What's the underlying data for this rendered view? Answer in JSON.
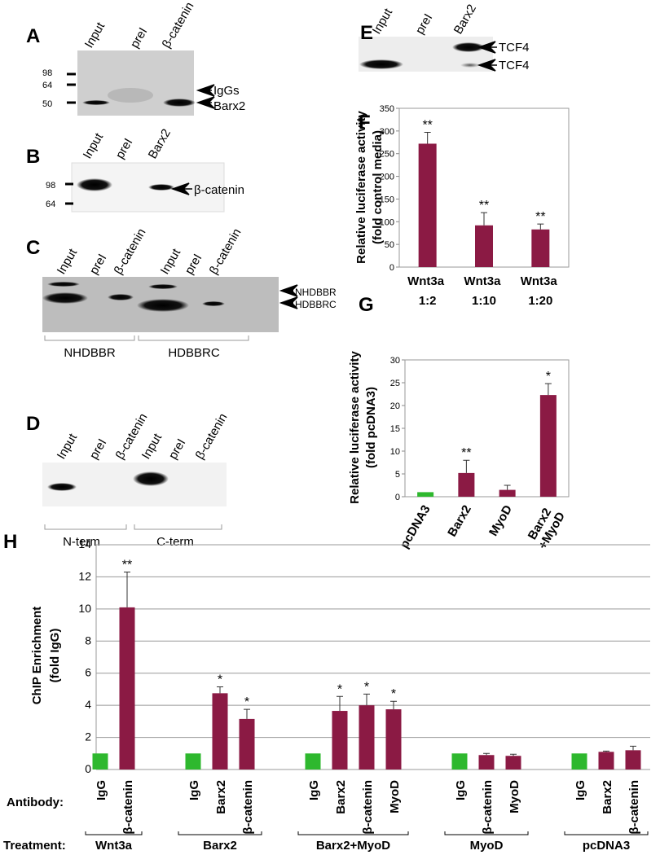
{
  "panel_letters": [
    "A",
    "B",
    "C",
    "D",
    "E",
    "F",
    "G",
    "H"
  ],
  "blots": {
    "A": {
      "lanes": [
        "Input",
        "preI",
        "β-catenin"
      ],
      "markers": [
        98,
        64,
        50
      ],
      "bands": [
        "IgGs",
        "Barx2"
      ]
    },
    "B": {
      "lanes": [
        "Input",
        "preI",
        "Barx2"
      ],
      "markers": [
        98,
        64
      ],
      "bands": [
        "β-catenin"
      ]
    },
    "C": {
      "lanes": [
        "Input",
        "preI",
        "β-catenin",
        "Input",
        "preI",
        "β-catenin"
      ],
      "bands": [
        "NHDBBR",
        "HDBBRC"
      ],
      "groups": [
        "NHDBBR",
        "HDBBRC"
      ]
    },
    "D": {
      "lanes": [
        "Input",
        "preI",
        "β-catenin",
        "Input",
        "preI",
        "β-catenin"
      ],
      "groups": [
        "N-term",
        "C-term"
      ]
    },
    "E": {
      "lanes": [
        "Input",
        "preI",
        "Barx2"
      ],
      "bands": [
        "TCF4",
        "TCF4"
      ]
    }
  },
  "chart_data": [
    {
      "type": "bar",
      "ylabel": [
        "Relative luciferase activity",
        "(fold control media)"
      ],
      "categories": [
        "Wnt3a 1:2",
        "Wnt3a 1:10",
        "Wnt3a 1:20"
      ],
      "values": [
        272,
        92,
        83
      ],
      "errors": [
        25,
        28,
        12
      ],
      "annotations": [
        "**",
        "**",
        "**"
      ],
      "color": "#8b1a44",
      "ylim": [
        0,
        350
      ],
      "yticks": [
        0,
        50,
        100,
        150,
        200,
        250,
        300,
        350
      ],
      "grid": false
    },
    {
      "type": "bar",
      "ylabel": [
        "Relative luciferase activity",
        "(fold pcDNA3)"
      ],
      "categories": [
        "pcDNA3",
        "Barx2",
        "MyoD",
        "Barx2 +MyoD"
      ],
      "values": [
        1,
        5.2,
        1.5,
        22.3
      ],
      "errors": [
        null,
        2.8,
        1.0,
        2.5
      ],
      "annotations": [
        null,
        "**",
        null,
        "*"
      ],
      "colors": [
        "#2eb82e",
        "#8b1a44",
        "#8b1a44",
        "#8b1a44"
      ],
      "ylim": [
        0,
        30
      ],
      "yticks": [
        0,
        5,
        10,
        15,
        20,
        25,
        30
      ],
      "grid": false
    },
    {
      "type": "grouped-bar",
      "ylabel": [
        "ChIP Enrichment",
        "(fold IgG)"
      ],
      "row_labels": [
        "Antibody:",
        "Treatment:"
      ],
      "groups": [
        {
          "name": "Wnt3a",
          "categories": [
            "IgG",
            "β-catenin"
          ],
          "values": [
            1,
            10.1
          ],
          "errors": [
            null,
            2.2
          ],
          "annotations": [
            null,
            "**"
          ],
          "colors": [
            "#2eb82e",
            "#8b1a44"
          ]
        },
        {
          "name": "Barx2",
          "categories": [
            "IgG",
            "Barx2",
            "β-catenin"
          ],
          "values": [
            1,
            4.75,
            3.15
          ],
          "errors": [
            null,
            0.4,
            0.6
          ],
          "annotations": [
            null,
            "*",
            "*"
          ],
          "colors": [
            "#2eb82e",
            "#8b1a44",
            "#8b1a44"
          ]
        },
        {
          "name": "Barx2+MyoD",
          "categories": [
            "IgG",
            "Barx2",
            "β-catenin",
            "MyoD"
          ],
          "values": [
            1,
            3.65,
            4.0,
            3.75
          ],
          "errors": [
            null,
            0.9,
            0.7,
            0.5
          ],
          "annotations": [
            null,
            "*",
            "*",
            "*"
          ],
          "colors": [
            "#2eb82e",
            "#8b1a44",
            "#8b1a44",
            "#8b1a44"
          ]
        },
        {
          "name": "MyoD",
          "categories": [
            "IgG",
            "β-catenin",
            "MyoD"
          ],
          "values": [
            1,
            0.9,
            0.85
          ],
          "errors": [
            null,
            0.1,
            0.1
          ],
          "annotations": [
            null,
            null,
            null
          ],
          "colors": [
            "#2eb82e",
            "#8b1a44",
            "#8b1a44"
          ]
        },
        {
          "name": "pcDNA3",
          "categories": [
            "IgG",
            "Barx2",
            "β-catenin"
          ],
          "values": [
            1,
            1.1,
            1.2
          ],
          "errors": [
            null,
            0.05,
            0.25
          ],
          "annotations": [
            null,
            null,
            null
          ],
          "colors": [
            "#2eb82e",
            "#8b1a44",
            "#8b1a44"
          ]
        }
      ],
      "ylim": [
        0,
        14
      ],
      "yticks": [
        0,
        2,
        4,
        6,
        8,
        10,
        12,
        14
      ],
      "grid": true
    }
  ]
}
